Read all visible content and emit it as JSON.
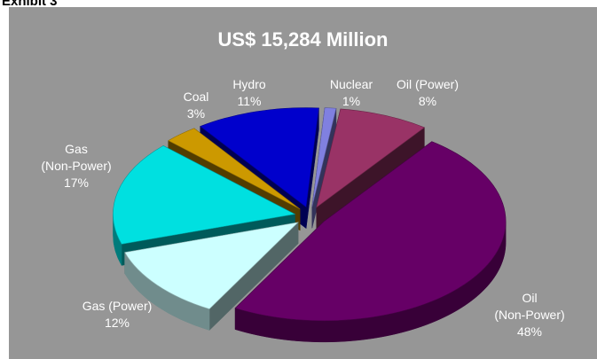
{
  "exhibit_label": "Exhibit 3",
  "chart_data": {
    "type": "pie",
    "title": "US$ 15,284 Million",
    "slices": [
      {
        "name": "Nuclear",
        "value": 1,
        "label": [
          "Nuclear",
          "1%"
        ],
        "color": "#8080e0"
      },
      {
        "name": "Oil (Power)",
        "value": 8,
        "label": [
          "Oil (Power)",
          "8%"
        ],
        "color": "#993366"
      },
      {
        "name": "Oil (Non-Power)",
        "value": 48,
        "label": [
          "Oil",
          "(Non-Power)",
          "48%"
        ],
        "color": "#660066"
      },
      {
        "name": "Gas (Power)",
        "value": 12,
        "label": [
          "Gas (Power)",
          "12%"
        ],
        "color": "#ccffff"
      },
      {
        "name": "Gas (Non-Power)",
        "value": 17,
        "label": [
          "Gas",
          "(Non-Power)",
          "17%"
        ],
        "color": "#00e0e0"
      },
      {
        "name": "Coal",
        "value": 3,
        "label": [
          "Coal",
          "3%"
        ],
        "color": "#cc9900"
      },
      {
        "name": "Hydro",
        "value": 11,
        "label": [
          "Hydro",
          "11%"
        ],
        "color": "#0000cc"
      }
    ],
    "style": "3d-exploded",
    "background": "#969696"
  }
}
